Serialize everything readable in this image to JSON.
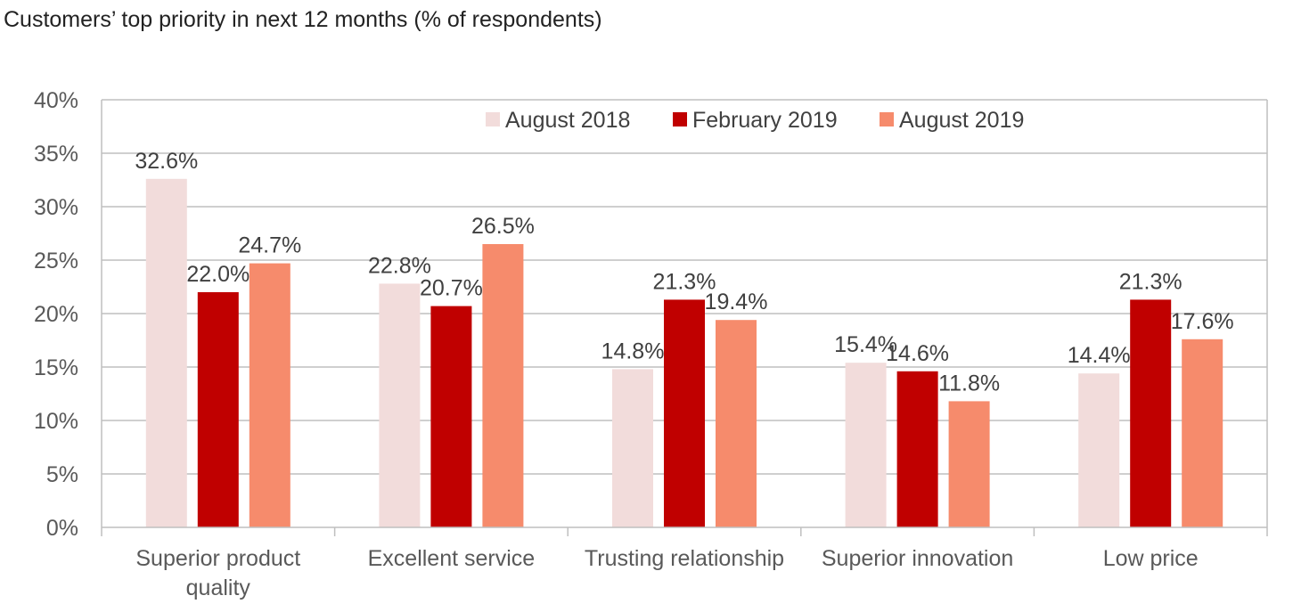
{
  "title": "Customers’ top priority in next 12 months (% of respondents)",
  "chart_data": {
    "type": "bar",
    "title": "Customers’ top priority in next 12 months (% of respondents)",
    "xlabel": "",
    "ylabel": "",
    "ylim": [
      0,
      40
    ],
    "y_ticks": [
      "0%",
      "5%",
      "10%",
      "15%",
      "20%",
      "25%",
      "30%",
      "35%",
      "40%"
    ],
    "y_tick_values": [
      0,
      5,
      10,
      15,
      20,
      25,
      30,
      35,
      40
    ],
    "grid": true,
    "legend_position": "top-center",
    "categories": [
      [
        "Superior product",
        "quality"
      ],
      [
        "Excellent service"
      ],
      [
        "Trusting relationship"
      ],
      [
        "Superior innovation"
      ],
      [
        "Low price"
      ]
    ],
    "series": [
      {
        "name": "August 2018",
        "color": "#f2dcdb",
        "values": [
          32.6,
          22.8,
          14.8,
          15.4,
          14.4
        ],
        "labels": [
          "32.6%",
          "22.8%",
          "14.8%",
          "15.4%",
          "14.4%"
        ]
      },
      {
        "name": "February 2019",
        "color": "#c00000",
        "values": [
          22.0,
          20.7,
          21.3,
          14.6,
          21.3
        ],
        "labels": [
          "22.0%",
          "20.7%",
          "21.3%",
          "14.6%",
          "21.3%"
        ]
      },
      {
        "name": "August 2019",
        "color": "#f68b6c",
        "values": [
          24.7,
          26.5,
          19.4,
          11.8,
          17.6
        ],
        "labels": [
          "24.7%",
          "26.5%",
          "19.4%",
          "11.8%",
          "17.6%"
        ]
      }
    ]
  }
}
